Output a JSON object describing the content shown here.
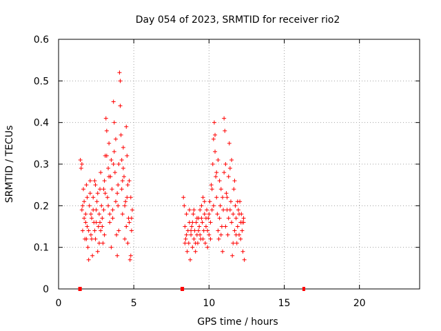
{
  "chart_data": {
    "type": "scatter",
    "title": "Day 054 of 2023, SRMTID for receiver rio2",
    "xlabel": "GPS time / hours",
    "ylabel": "SRMTID / TECUs",
    "xlim": [
      0,
      24
    ],
    "ylim": [
      0,
      0.6
    ],
    "xticks": [
      0,
      5,
      10,
      15,
      20
    ],
    "yticks": [
      0,
      0.1,
      0.2,
      0.3,
      0.4,
      0.5,
      0.6
    ],
    "xtick_labels": [
      "0",
      "5",
      "10",
      "15",
      "20"
    ],
    "ytick_labels": [
      "0",
      "0.1",
      "0.2",
      "0.3",
      "0.4",
      "0.5",
      "0.6"
    ],
    "grid": true,
    "marker": "+",
    "color": "#ff0000",
    "series": [
      {
        "name": "SRMTID",
        "points": [
          [
            1.45,
            0.31
          ],
          [
            1.5,
            0.29
          ],
          [
            1.55,
            0.3
          ],
          [
            1.6,
            0.2
          ],
          [
            1.65,
            0.24
          ],
          [
            1.7,
            0.21
          ],
          [
            1.75,
            0.12
          ],
          [
            1.8,
            0.18
          ],
          [
            1.85,
            0.25
          ],
          [
            1.9,
            0.15
          ],
          [
            1.95,
            0.1
          ],
          [
            2.0,
            0.14
          ],
          [
            2.05,
            0.2
          ],
          [
            2.1,
            0.23
          ],
          [
            2.15,
            0.13
          ],
          [
            2.2,
            0.17
          ],
          [
            2.25,
            0.08
          ],
          [
            2.3,
            0.22
          ],
          [
            2.35,
            0.16
          ],
          [
            2.4,
            0.26
          ],
          [
            2.45,
            0.12
          ],
          [
            2.5,
            0.19
          ],
          [
            2.55,
            0.21
          ],
          [
            2.6,
            0.09
          ],
          [
            2.65,
            0.15
          ],
          [
            2.7,
            0.18
          ],
          [
            2.75,
            0.24
          ],
          [
            2.8,
            0.14
          ],
          [
            2.85,
            0.2
          ],
          [
            2.9,
            0.17
          ],
          [
            2.95,
            0.11
          ],
          [
            3.0,
            0.19
          ],
          [
            3.05,
            0.26
          ],
          [
            3.1,
            0.32
          ],
          [
            3.15,
            0.41
          ],
          [
            3.2,
            0.38
          ],
          [
            3.25,
            0.22
          ],
          [
            3.3,
            0.29
          ],
          [
            3.35,
            0.35
          ],
          [
            3.4,
            0.16
          ],
          [
            3.45,
            0.27
          ],
          [
            3.5,
            0.31
          ],
          [
            3.55,
            0.24
          ],
          [
            3.6,
            0.19
          ],
          [
            3.65,
            0.45
          ],
          [
            3.7,
            0.33
          ],
          [
            3.75,
            0.28
          ],
          [
            3.8,
            0.21
          ],
          [
            3.85,
            0.13
          ],
          [
            3.9,
            0.08
          ],
          [
            3.95,
            0.25
          ],
          [
            4.0,
            0.3
          ],
          [
            4.05,
            0.52
          ],
          [
            4.1,
            0.5
          ],
          [
            4.15,
            0.37
          ],
          [
            4.2,
            0.24
          ],
          [
            4.25,
            0.18
          ],
          [
            4.3,
            0.34
          ],
          [
            4.35,
            0.27
          ],
          [
            4.4,
            0.12
          ],
          [
            4.45,
            0.21
          ],
          [
            4.5,
            0.39
          ],
          [
            4.55,
            0.32
          ],
          [
            4.6,
            0.25
          ],
          [
            4.65,
            0.17
          ],
          [
            4.7,
            0.16
          ],
          [
            4.75,
            0.07
          ],
          [
            4.8,
            0.22
          ],
          [
            4.85,
            0.14
          ],
          [
            4.9,
            0.19
          ],
          [
            1.6,
            0.14
          ],
          [
            1.9,
            0.22
          ],
          [
            2.2,
            0.12
          ],
          [
            2.5,
            0.16
          ],
          [
            2.8,
            0.28
          ],
          [
            3.1,
            0.23
          ],
          [
            3.4,
            0.18
          ],
          [
            3.7,
            0.4
          ],
          [
            4.0,
            0.14
          ],
          [
            4.3,
            0.29
          ],
          [
            4.6,
            0.11
          ],
          [
            1.7,
            0.17
          ],
          [
            2.0,
            0.07
          ],
          [
            2.3,
            0.19
          ],
          [
            2.6,
            0.23
          ],
          [
            2.9,
            0.15
          ],
          [
            3.2,
            0.32
          ],
          [
            3.5,
            0.1
          ],
          [
            3.8,
            0.36
          ],
          [
            4.1,
            0.44
          ],
          [
            4.4,
            0.2
          ],
          [
            4.7,
            0.26
          ],
          [
            1.8,
            0.16
          ],
          [
            2.1,
            0.26
          ],
          [
            2.4,
            0.14
          ],
          [
            2.7,
            0.11
          ],
          [
            3.0,
            0.24
          ],
          [
            3.3,
            0.2
          ],
          [
            3.6,
            0.17
          ],
          [
            3.9,
            0.23
          ],
          [
            4.2,
            0.31
          ],
          [
            4.5,
            0.15
          ],
          [
            4.8,
            0.08
          ],
          [
            1.55,
            0.19
          ],
          [
            1.85,
            0.12
          ],
          [
            2.15,
            0.18
          ],
          [
            2.45,
            0.25
          ],
          [
            2.75,
            0.16
          ],
          [
            3.05,
            0.13
          ],
          [
            3.35,
            0.27
          ],
          [
            3.65,
            0.3
          ],
          [
            3.95,
            0.2
          ],
          [
            4.25,
            0.26
          ],
          [
            4.55,
            0.22
          ],
          [
            4.85,
            0.17
          ],
          [
            8.3,
            0.22
          ],
          [
            8.35,
            0.2
          ],
          [
            8.4,
            0.15
          ],
          [
            8.45,
            0.12
          ],
          [
            8.5,
            0.18
          ],
          [
            8.55,
            0.09
          ],
          [
            8.6,
            0.14
          ],
          [
            8.65,
            0.11
          ],
          [
            8.7,
            0.16
          ],
          [
            8.75,
            0.07
          ],
          [
            8.8,
            0.13
          ],
          [
            8.85,
            0.15
          ],
          [
            8.9,
            0.1
          ],
          [
            8.95,
            0.18
          ],
          [
            9.0,
            0.12
          ],
          [
            9.05,
            0.14
          ],
          [
            9.1,
            0.09
          ],
          [
            9.15,
            0.16
          ],
          [
            9.2,
            0.13
          ],
          [
            9.25,
            0.11
          ],
          [
            9.3,
            0.17
          ],
          [
            9.35,
            0.15
          ],
          [
            9.4,
            0.19
          ],
          [
            9.45,
            0.12
          ],
          [
            9.5,
            0.2
          ],
          [
            9.55,
            0.16
          ],
          [
            9.6,
            0.22
          ],
          [
            9.65,
            0.14
          ],
          [
            9.7,
            0.18
          ],
          [
            9.75,
            0.11
          ],
          [
            9.8,
            0.15
          ],
          [
            9.85,
            0.19
          ],
          [
            9.9,
            0.1
          ],
          [
            9.95,
            0.17
          ],
          [
            10.0,
            0.13
          ],
          [
            10.05,
            0.21
          ],
          [
            10.1,
            0.16
          ],
          [
            10.15,
            0.25
          ],
          [
            10.2,
            0.19
          ],
          [
            10.25,
            0.3
          ],
          [
            10.3,
            0.36
          ],
          [
            10.35,
            0.4
          ],
          [
            10.4,
            0.33
          ],
          [
            10.45,
            0.27
          ],
          [
            10.5,
            0.22
          ],
          [
            10.55,
            0.18
          ],
          [
            10.6,
            0.14
          ],
          [
            10.65,
            0.12
          ],
          [
            10.7,
            0.17
          ],
          [
            10.75,
            0.2
          ],
          [
            10.8,
            0.24
          ],
          [
            10.85,
            0.15
          ],
          [
            10.9,
            0.09
          ],
          [
            10.95,
            0.19
          ],
          [
            11.0,
            0.41
          ],
          [
            11.05,
            0.38
          ],
          [
            11.1,
            0.3
          ],
          [
            11.15,
            0.23
          ],
          [
            11.2,
            0.19
          ],
          [
            11.25,
            0.13
          ],
          [
            11.3,
            0.27
          ],
          [
            11.35,
            0.35
          ],
          [
            11.4,
            0.29
          ],
          [
            11.45,
            0.21
          ],
          [
            11.5,
            0.16
          ],
          [
            11.55,
            0.08
          ],
          [
            11.6,
            0.18
          ],
          [
            11.65,
            0.24
          ],
          [
            11.7,
            0.14
          ],
          [
            11.75,
            0.2
          ],
          [
            11.8,
            0.17
          ],
          [
            11.85,
            0.11
          ],
          [
            11.9,
            0.15
          ],
          [
            11.95,
            0.19
          ],
          [
            12.0,
            0.13
          ],
          [
            12.05,
            0.21
          ],
          [
            12.1,
            0.16
          ],
          [
            12.15,
            0.18
          ],
          [
            12.2,
            0.14
          ],
          [
            12.25,
            0.09
          ],
          [
            12.3,
            0.16
          ],
          [
            12.35,
            0.07
          ],
          [
            8.5,
            0.13
          ],
          [
            8.9,
            0.16
          ],
          [
            9.3,
            0.14
          ],
          [
            9.7,
            0.21
          ],
          [
            10.1,
            0.12
          ],
          [
            10.5,
            0.28
          ],
          [
            10.9,
            0.22
          ],
          [
            11.3,
            0.17
          ],
          [
            11.7,
            0.26
          ],
          [
            12.1,
            0.12
          ],
          [
            8.7,
            0.19
          ],
          [
            9.1,
            0.11
          ],
          [
            9.5,
            0.17
          ],
          [
            9.9,
            0.14
          ],
          [
            10.3,
            0.2
          ],
          [
            10.7,
            0.26
          ],
          [
            11.1,
            0.15
          ],
          [
            11.5,
            0.31
          ],
          [
            11.9,
            0.21
          ],
          [
            12.3,
            0.17
          ],
          [
            8.4,
            0.11
          ],
          [
            8.8,
            0.14
          ],
          [
            9.2,
            0.17
          ],
          [
            9.6,
            0.12
          ],
          [
            10.0,
            0.18
          ],
          [
            10.4,
            0.37
          ],
          [
            10.8,
            0.13
          ],
          [
            11.2,
            0.22
          ],
          [
            11.6,
            0.11
          ],
          [
            12.0,
            0.18
          ],
          [
            9.0,
            0.19
          ],
          [
            9.4,
            0.13
          ],
          [
            9.8,
            0.17
          ],
          [
            10.2,
            0.24
          ],
          [
            10.6,
            0.31
          ],
          [
            11.0,
            0.28
          ],
          [
            11.4,
            0.19
          ],
          [
            11.8,
            0.13
          ],
          [
            12.2,
            0.16
          ]
        ]
      }
    ],
    "zero_markers": [
      1.4,
      1.45,
      8.2,
      8.25,
      16.3
    ]
  }
}
